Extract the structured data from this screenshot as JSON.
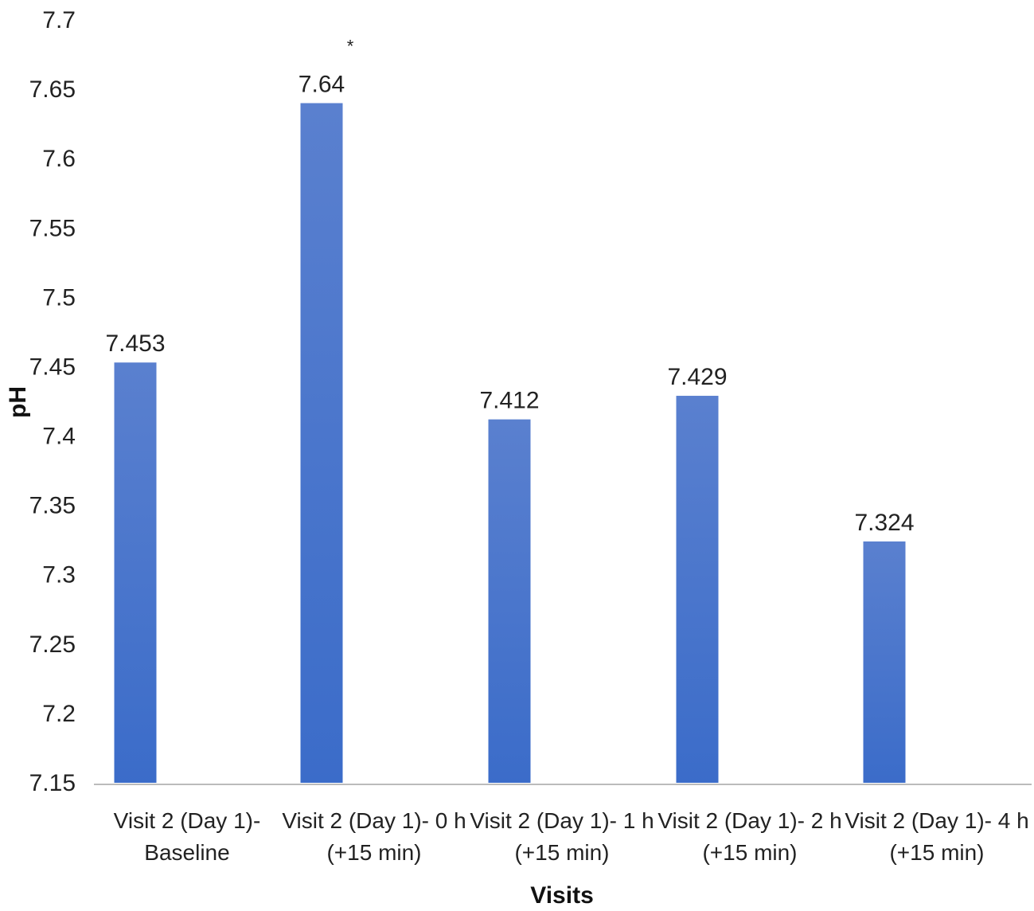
{
  "chart_data": {
    "type": "bar",
    "categories": [
      [
        "Visit 2 (Day 1)-",
        "Baseline"
      ],
      [
        "Visit 2 (Day 1)- 0 h",
        "(+15 min)"
      ],
      [
        "Visit 2 (Day 1)- 1 h",
        "(+15 min)"
      ],
      [
        "Visit 2 (Day 1)- 2 h",
        "(+15 min)"
      ],
      [
        "Visit 2 (Day 1)- 4 h",
        "(+15 min)"
      ]
    ],
    "values": [
      7.453,
      7.64,
      7.412,
      7.429,
      7.324
    ],
    "data_labels": [
      "7.453",
      "7.64",
      "7.412",
      "7.429",
      "7.324"
    ],
    "significance_marks": [
      "",
      "*",
      "",
      "",
      ""
    ],
    "xlabel": "Visits",
    "ylabel": "pH",
    "ylim": [
      7.15,
      7.7
    ],
    "yticks": [
      "7.15",
      "7.2",
      "7.25",
      "7.3",
      "7.35",
      "7.4",
      "7.45",
      "7.5",
      "7.55",
      "7.6",
      "7.65",
      "7.7"
    ],
    "grid": false,
    "bar_color": "#3b6cc9",
    "bar_color_top": "#5a80cf"
  }
}
